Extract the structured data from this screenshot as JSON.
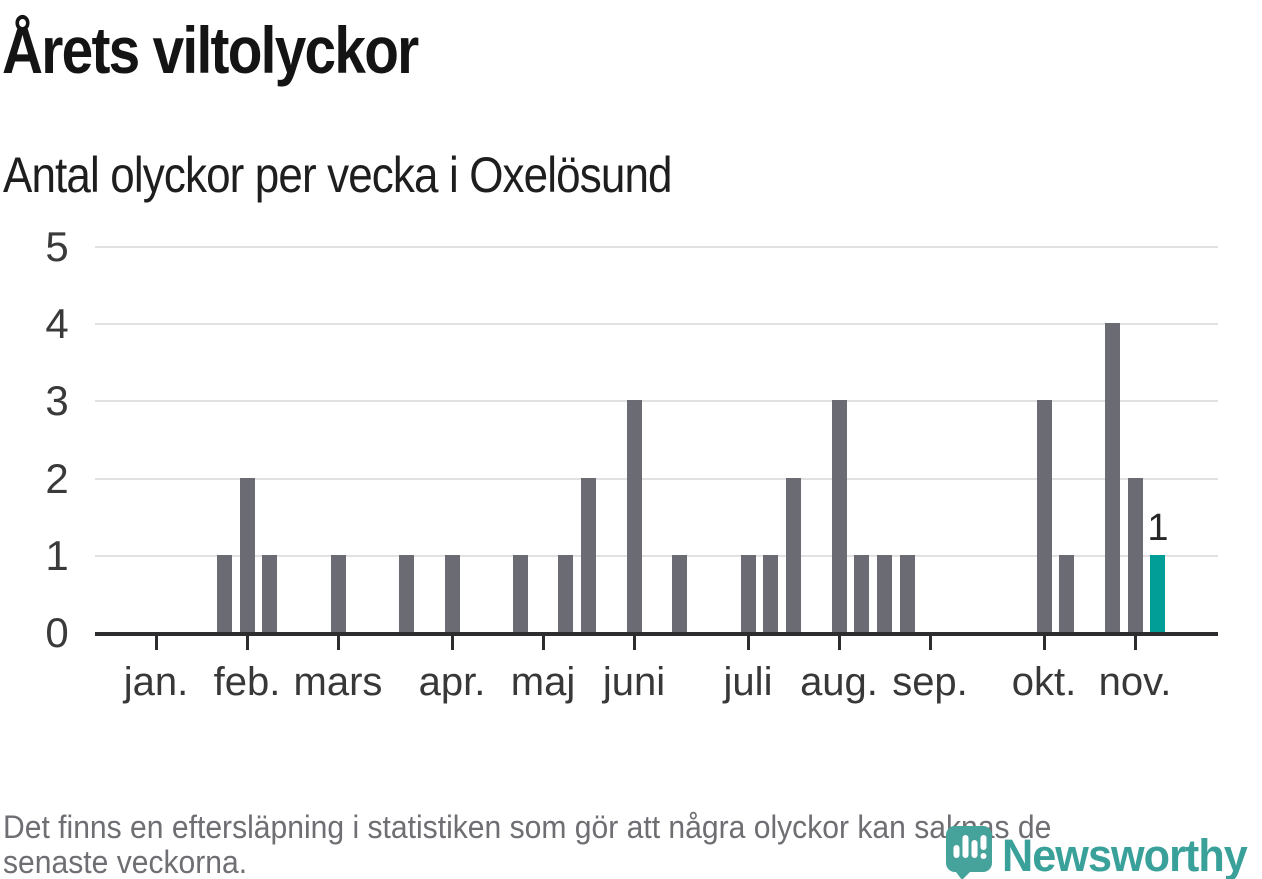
{
  "title": "Årets viltolyckor",
  "subtitle": "Antal olyckor per vecka i Oxelösund",
  "footnote": {
    "line1": "Det finns en eftersläpning i statistiken som gör att några olyckor kan saknas de",
    "line2": "senaste veckorna."
  },
  "logo": {
    "brand": "Newsworthy",
    "pin_icon": "bar-chart-exclamation-pin-icon"
  },
  "colors": {
    "bar_gray": "#6b6b73",
    "bar_highlight_teal": "#009e97",
    "axis": "#2d2d30",
    "gridline": "#e1e1e1",
    "brand_teal": "#3aa19a",
    "footnote_gray": "#6e6e73"
  },
  "chart_data": {
    "type": "bar",
    "title": "Årets viltolyckor",
    "subtitle": "Antal olyckor per vecka i Oxelösund",
    "x_unit": "week of year",
    "ylabel": "",
    "xlabel": "",
    "ylim": [
      0,
      5
    ],
    "y_ticks": [
      0,
      1,
      2,
      3,
      4,
      5
    ],
    "grid": "horizontal",
    "weeks": [
      1,
      2,
      3,
      4,
      5,
      6,
      7,
      8,
      9,
      10,
      11,
      12,
      13,
      14,
      15,
      16,
      17,
      18,
      19,
      20,
      21,
      22,
      23,
      24,
      25,
      26,
      27,
      28,
      29,
      30,
      31,
      32,
      33,
      34,
      35,
      36,
      37,
      38,
      39,
      40,
      41,
      42,
      43,
      44,
      45,
      46
    ],
    "values": [
      0,
      0,
      0,
      1,
      2,
      1,
      0,
      0,
      1,
      0,
      0,
      1,
      0,
      1,
      0,
      0,
      1,
      0,
      1,
      2,
      0,
      3,
      0,
      1,
      0,
      0,
      1,
      1,
      2,
      0,
      3,
      1,
      1,
      1,
      0,
      0,
      0,
      0,
      0,
      3,
      1,
      0,
      4,
      2,
      1,
      0
    ],
    "highlight_week": 45,
    "highlight_value": 1,
    "highlight_value_label": "1",
    "month_ticks": [
      {
        "label": "jan.",
        "week": 1
      },
      {
        "label": "feb.",
        "week": 5
      },
      {
        "label": "mars",
        "week": 9
      },
      {
        "label": "apr.",
        "week": 14
      },
      {
        "label": "maj",
        "week": 18
      },
      {
        "label": "juni",
        "week": 22
      },
      {
        "label": "juli",
        "week": 27
      },
      {
        "label": "aug.",
        "week": 31
      },
      {
        "label": "sep.",
        "week": 35
      },
      {
        "label": "okt.",
        "week": 40
      },
      {
        "label": "nov.",
        "week": 44
      }
    ]
  }
}
